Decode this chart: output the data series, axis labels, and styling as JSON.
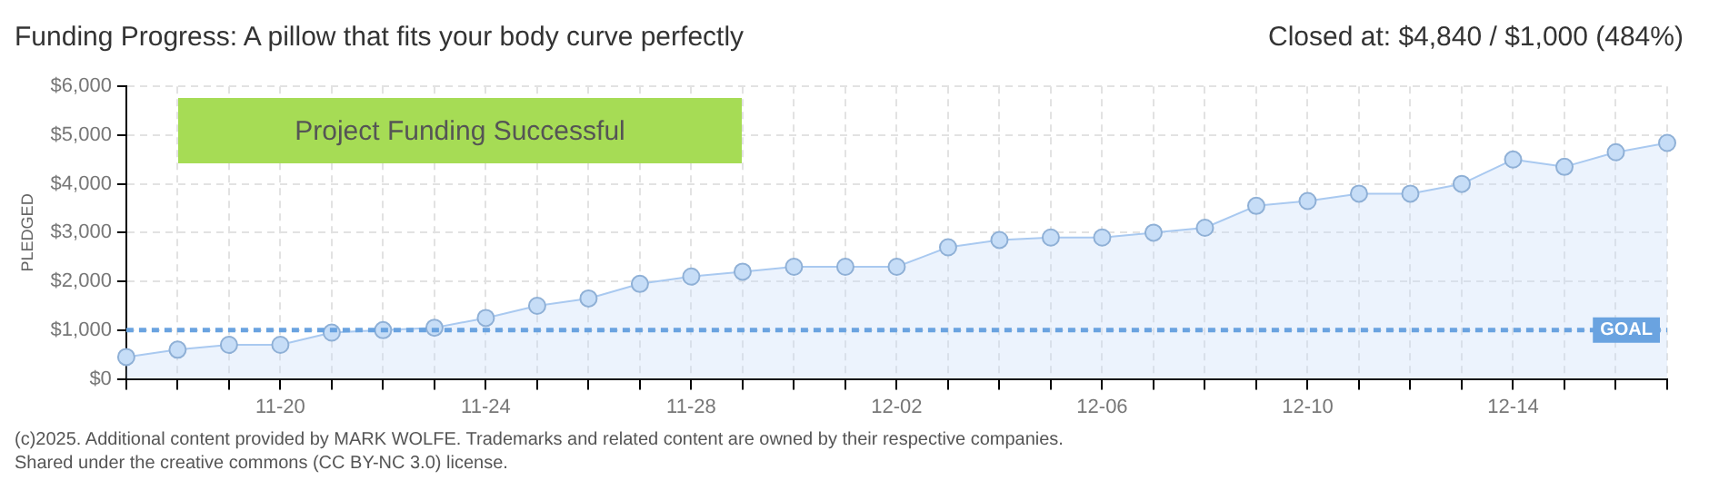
{
  "chart_data": {
    "type": "area",
    "title": "Funding Progress: A pillow that fits your body curve perfectly",
    "subtitle": "Closed at: $4,840 / $1,000 (484%)",
    "ylabel": "PLEDGED",
    "categories": [
      null,
      null,
      null,
      "11-20",
      null,
      null,
      null,
      "11-24",
      null,
      null,
      null,
      "11-28",
      null,
      null,
      null,
      "12-02",
      null,
      null,
      null,
      "12-06",
      null,
      null,
      null,
      "12-10",
      null,
      null,
      null,
      "12-14",
      null,
      null,
      null
    ],
    "series": [
      {
        "color": "#a9c9f0",
        "values": [
          450,
          600,
          700,
          700,
          950,
          1000,
          1050,
          1250,
          1500,
          1650,
          1950,
          2100,
          2200,
          2300,
          2300,
          2300,
          2700,
          2850,
          2900,
          2900,
          3000,
          3100,
          3550,
          3650,
          3800,
          3800,
          4000,
          4500,
          4350,
          4650,
          4840
        ]
      }
    ],
    "ylim": [
      0,
      6000
    ],
    "yticks": [
      {
        "value": 0,
        "label": "$0"
      },
      {
        "value": 1000,
        "label": "$1,000"
      },
      {
        "value": 2000,
        "label": "$2,000"
      },
      {
        "value": 3000,
        "label": "$3,000"
      },
      {
        "value": 4000,
        "label": "$4,000"
      },
      {
        "value": 5000,
        "label": "$5,000"
      },
      {
        "value": 6000,
        "label": "$6,000"
      }
    ],
    "grid": true,
    "marker": "circle",
    "line_style": "solid",
    "ref_lines": [
      {
        "axis": "y",
        "value": 1000,
        "label": "GOAL",
        "color": "#6aa3e0",
        "line_style": "dashed"
      }
    ],
    "annotations": [
      "Project Funding Successful",
      "(c)2025. Additional content provided by MARK WOLFE. Trademarks and related content are owned by their respective companies.",
      "Shared under the creative commons (CC BY-NC 3.0) license."
    ]
  }
}
